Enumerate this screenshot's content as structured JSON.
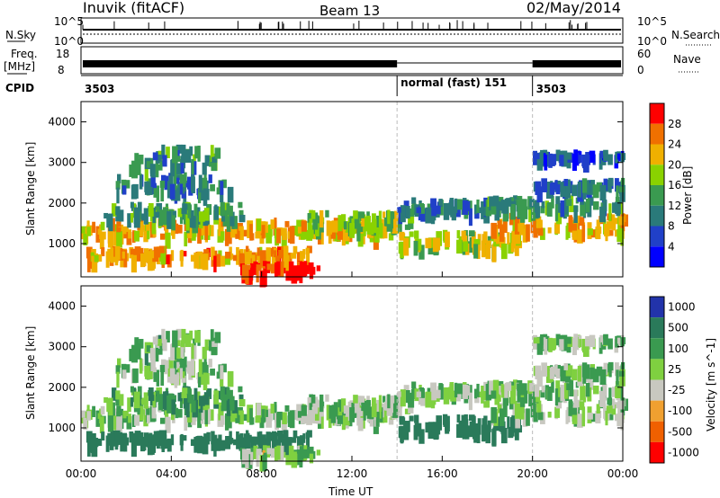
{
  "header": {
    "station": "Inuvik (fitACF)",
    "beam": "Beam 13",
    "date": "02/May/2014"
  },
  "top_panels": {
    "nsky_label": "N.Sky",
    "nsky_ticks": [
      "10^5",
      "10^0"
    ],
    "nsearch_label": "N.Search",
    "nsearch_ticks": [
      "10^5",
      "10^0"
    ],
    "freq_label": "Freq.",
    "freq_unit": "[MHz]",
    "freq_ticks": [
      "18",
      "8"
    ],
    "nave_label": "Nave",
    "nave_ticks": [
      "60",
      "0"
    ],
    "cpid_label": "CPID",
    "cpid_segments": [
      {
        "start": 0,
        "end": 14,
        "label": "3503"
      },
      {
        "start": 14,
        "end": 20,
        "label": "normal (fast) 151"
      },
      {
        "start": 20,
        "end": 24,
        "label": "3503"
      }
    ]
  },
  "time_axis": {
    "label": "Time UT",
    "ticks": [
      "00:00",
      "04:00",
      "08:00",
      "12:00",
      "16:00",
      "20:00",
      "00:00"
    ]
  },
  "chart_data": [
    {
      "type": "heatmap",
      "panel": "power",
      "ylabel": "Slant Range [km]",
      "ylim": [
        180,
        4500
      ],
      "xlim": [
        0,
        24
      ],
      "yticks": [
        1000,
        2000,
        3000,
        4000
      ],
      "colorbar": {
        "label": "Power [dB]",
        "range": [
          0,
          32
        ],
        "ticks": [
          "4",
          "8",
          "12",
          "16",
          "20",
          "24",
          "28"
        ],
        "colors": [
          "#0000ff",
          "#2040c8",
          "#2a7a7a",
          "#3a9a50",
          "#8ad200",
          "#f0b000",
          "#f07000",
          "#ff0000"
        ]
      },
      "bands": [
        {
          "t0": 0,
          "t1": 14,
          "r": 1450,
          "w": 260,
          "v": 22
        },
        {
          "t0": 0,
          "t1": 10,
          "r": 820,
          "w": 160,
          "v": 24
        },
        {
          "t0": 1,
          "t1": 7,
          "r": 1850,
          "w": 230,
          "v": 13
        },
        {
          "t0": 1.5,
          "t1": 6.5,
          "r": 2550,
          "w": 260,
          "v": 10
        },
        {
          "t0": 2,
          "t1": 6,
          "r": 3200,
          "w": 320,
          "v": 12
        },
        {
          "t0": 7,
          "t1": 10.5,
          "r": 450,
          "w": 160,
          "v": 30
        },
        {
          "t0": 10,
          "t1": 15,
          "r": 1650,
          "w": 240,
          "v": 17
        },
        {
          "t0": 14,
          "t1": 19.5,
          "r": 1150,
          "w": 240,
          "v": 19
        },
        {
          "t0": 14,
          "t1": 18,
          "r": 2000,
          "w": 180,
          "v": 9
        },
        {
          "t0": 18,
          "t1": 24,
          "r": 1550,
          "w": 260,
          "v": 23
        },
        {
          "t0": 18,
          "t1": 24,
          "r": 2050,
          "w": 180,
          "v": 12
        },
        {
          "t0": 20,
          "t1": 24,
          "r": 3250,
          "w": 90,
          "v": 7
        },
        {
          "t0": 20,
          "t1": 24,
          "r": 2500,
          "w": 150,
          "v": 9
        }
      ]
    },
    {
      "type": "heatmap",
      "panel": "velocity",
      "ylabel": "Slant Range [km]",
      "ylim": [
        180,
        4500
      ],
      "xlim": [
        0,
        24
      ],
      "yticks": [
        1000,
        2000,
        3000,
        4000
      ],
      "colorbar": {
        "label": "Velocity [m s^-1]",
        "range": [
          -1000,
          1000
        ],
        "ticks": [
          "1000",
          "500",
          "100",
          "25",
          "-25",
          "-100",
          "-500",
          "-1000"
        ],
        "colors": [
          "#2233aa",
          "#2a7a5a",
          "#3a9a50",
          "#7fd040",
          "#c8c8c0",
          "#f0a030",
          "#f06000",
          "#ff0000"
        ]
      },
      "bands": [
        {
          "t0": 0,
          "t1": 14,
          "r": 1450,
          "w": 260,
          "v": 0
        },
        {
          "t0": 0,
          "t1": 10,
          "r": 820,
          "w": 160,
          "v": 200
        },
        {
          "t0": 1,
          "t1": 7,
          "r": 1850,
          "w": 230,
          "v": 80
        },
        {
          "t0": 1.5,
          "t1": 6.5,
          "r": 2550,
          "w": 260,
          "v": 0
        },
        {
          "t0": 2,
          "t1": 6,
          "r": 3200,
          "w": 320,
          "v": 10
        },
        {
          "t0": 7,
          "t1": 10.5,
          "r": 450,
          "w": 160,
          "v": -5
        },
        {
          "t0": 10,
          "t1": 15,
          "r": 1650,
          "w": 240,
          "v": 0
        },
        {
          "t0": 14,
          "t1": 19.5,
          "r": 1150,
          "w": 240,
          "v": 300
        },
        {
          "t0": 14,
          "t1": 18,
          "r": 2000,
          "w": 180,
          "v": 0
        },
        {
          "t0": 18,
          "t1": 24,
          "r": 1550,
          "w": 260,
          "v": 0
        },
        {
          "t0": 18,
          "t1": 24,
          "r": 2050,
          "w": 180,
          "v": 0
        },
        {
          "t0": 20,
          "t1": 24,
          "r": 3250,
          "w": 90,
          "v": 0
        },
        {
          "t0": 20,
          "t1": 24,
          "r": 2500,
          "w": 150,
          "v": 0
        }
      ]
    }
  ]
}
